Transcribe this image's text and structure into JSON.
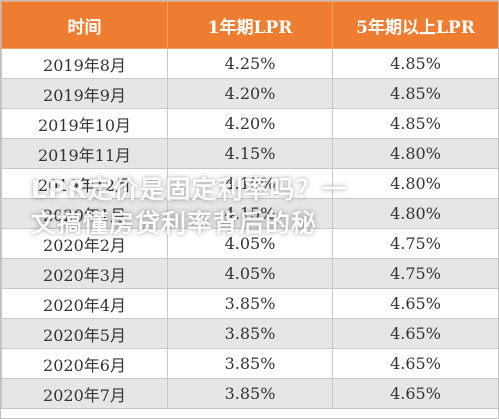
{
  "table": {
    "headers": [
      "时间",
      "1年期LPR",
      "5年期以上LPR"
    ],
    "rows": [
      [
        "2019年8月",
        "4.25%",
        "4.85%"
      ],
      [
        "2019年9月",
        "4.20%",
        "4.85%"
      ],
      [
        "2019年10月",
        "4.20%",
        "4.85%"
      ],
      [
        "2019年11月",
        "4.15%",
        "4.80%"
      ],
      [
        "2019年12月",
        "4.15%",
        "4.80%"
      ],
      [
        "2020年1月",
        "4.15%",
        "4.80%"
      ],
      [
        "2020年2月",
        "4.05%",
        "4.75%"
      ],
      [
        "2020年3月",
        "4.05%",
        "4.75%"
      ],
      [
        "2020年4月",
        "3.85%",
        "4.65%"
      ],
      [
        "2020年5月",
        "3.85%",
        "4.65%"
      ],
      [
        "2020年6月",
        "3.85%",
        "4.65%"
      ],
      [
        "2020年7月",
        "3.85%",
        "4.65%"
      ]
    ]
  },
  "overlay": {
    "line1": "LPR定价是固定利率吗？一",
    "line2": "文搞懂房贷利率背后的秘"
  },
  "colors": {
    "header_bg": "#ee7d31",
    "header_text": "#ffffff",
    "alt_row_bg": "#e6e6e6"
  }
}
